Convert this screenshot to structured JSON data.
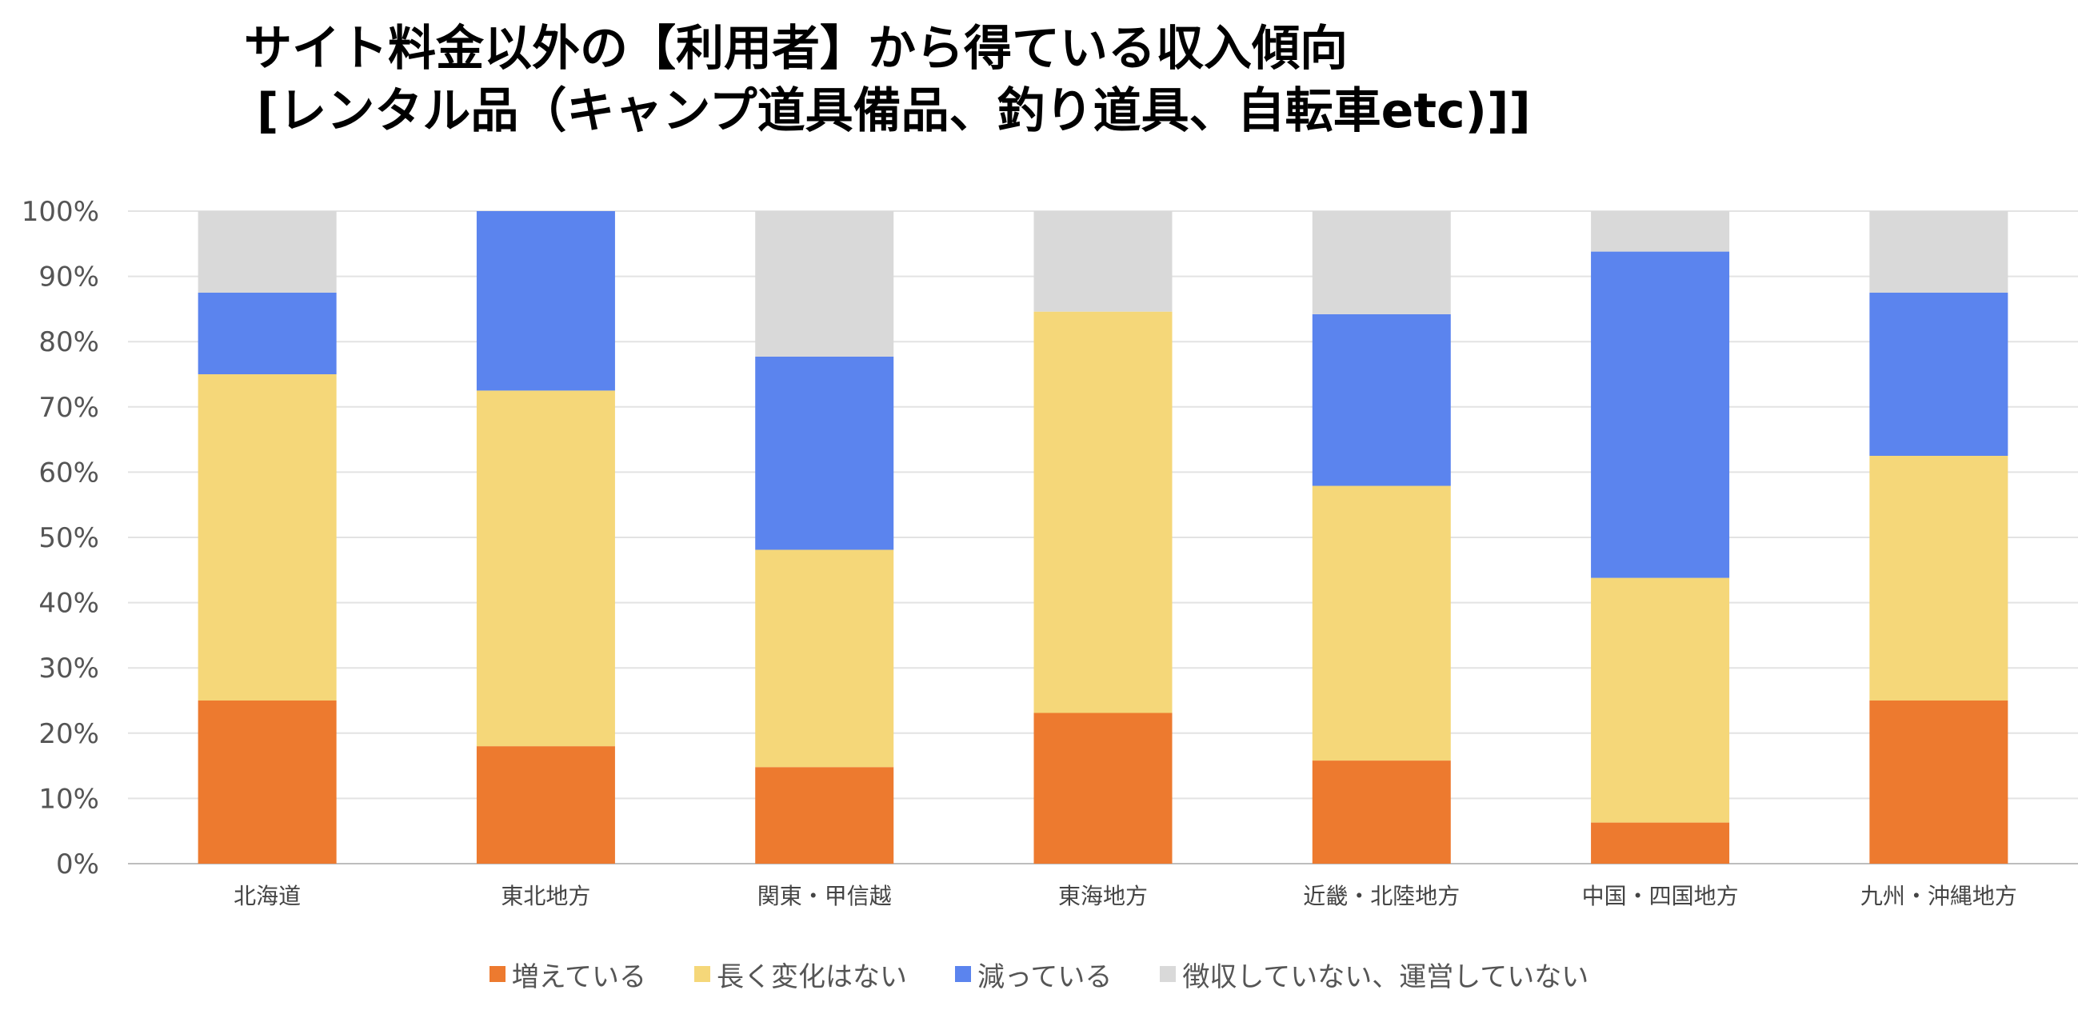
{
  "title_lines": [
    "サイト料金以外の【利用者】から得ている収入傾向",
    "[レンタル品（キャンプ道具備品、釣り道具、自転車etc)]]"
  ],
  "chart_data": {
    "type": "bar",
    "stacked": true,
    "title": "サイト料金以外の【利用者】から得ている収入傾向 [レンタル品（キャンプ道具備品、釣り道具、自転車etc)]]",
    "categories": [
      "北海道",
      "東北地方",
      "関東・甲信越",
      "東海地方",
      "近畿・北陸地方",
      "中国・四国地方",
      "九州・沖縄地方"
    ],
    "series": [
      {
        "name": "増えている",
        "color": "#ED7A2F",
        "values": [
          25,
          18,
          14.8,
          23.1,
          15.8,
          6.3,
          25
        ]
      },
      {
        "name": "長く変化はない",
        "color": "#F5D779",
        "values": [
          50,
          54.5,
          33.3,
          61.5,
          42.1,
          37.5,
          37.5
        ]
      },
      {
        "name": "減っている",
        "color": "#5B84EE",
        "values": [
          12.5,
          27.5,
          29.6,
          0,
          26.3,
          50,
          25
        ]
      },
      {
        "name": "徴収していない、運営していない",
        "color": "#D9D9D9",
        "values": [
          12.5,
          0,
          22.3,
          15.4,
          15.8,
          6.2,
          12.5
        ]
      }
    ],
    "y_ticks": [
      "0%",
      "10%",
      "20%",
      "30%",
      "40%",
      "50%",
      "60%",
      "70%",
      "80%",
      "90%",
      "100%"
    ],
    "ylim": [
      0,
      100
    ],
    "grid": true,
    "legend_position": "bottom"
  }
}
